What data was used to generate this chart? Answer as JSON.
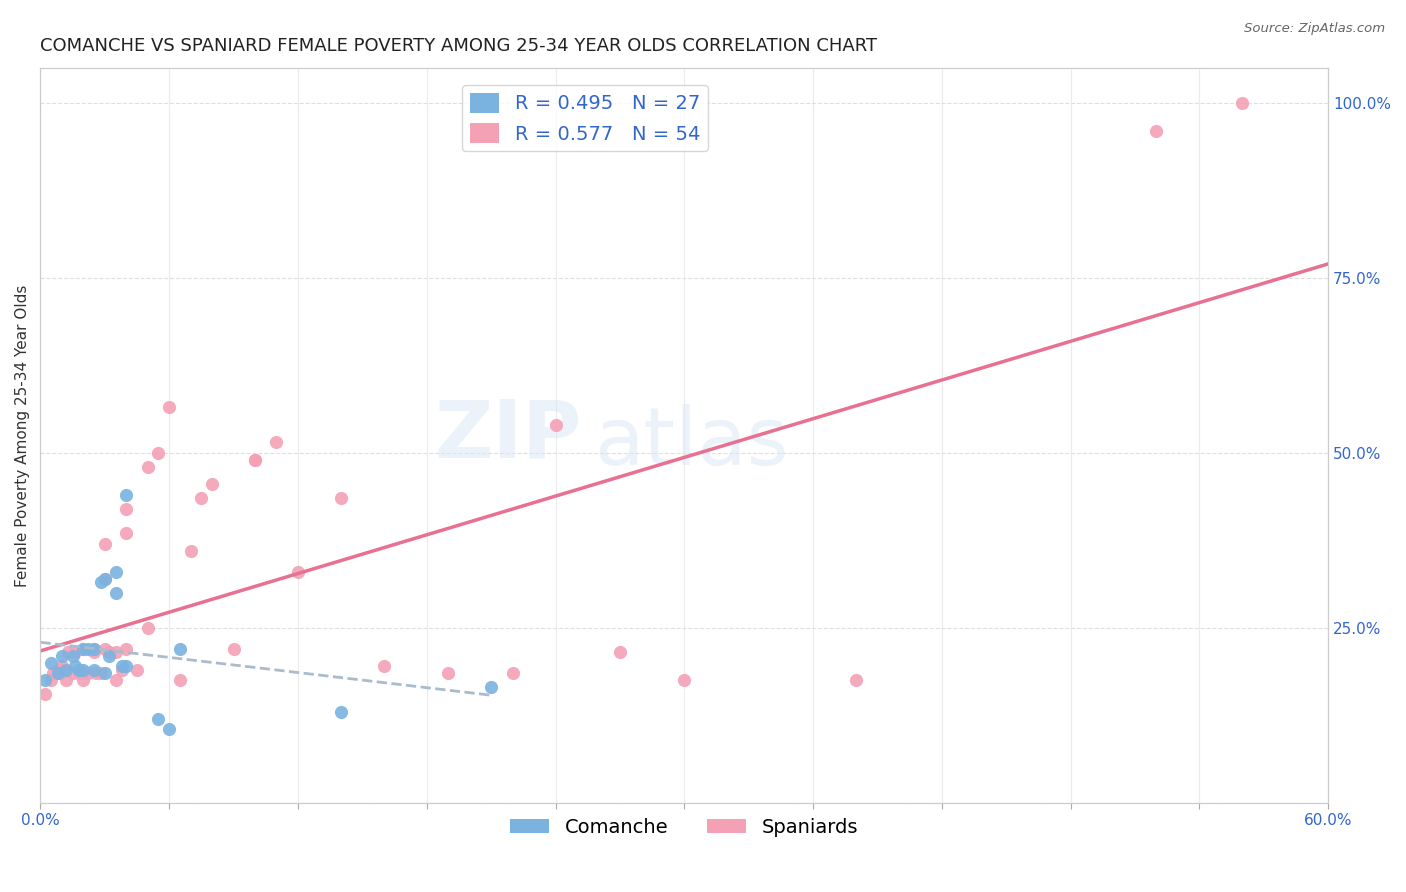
{
  "title": "COMANCHE VS SPANIARD FEMALE POVERTY AMONG 25-34 YEAR OLDS CORRELATION CHART",
  "source": "Source: ZipAtlas.com",
  "xlabel": "",
  "ylabel": "Female Poverty Among 25-34 Year Olds",
  "xlim": [
    0.0,
    0.6
  ],
  "ylim": [
    0.0,
    1.05
  ],
  "xticks": [
    0.0,
    0.06,
    0.12,
    0.18,
    0.24,
    0.3,
    0.36,
    0.42,
    0.48,
    0.54,
    0.6
  ],
  "yticks_right": [
    0.0,
    0.25,
    0.5,
    0.75,
    1.0
  ],
  "yticklabels_right": [
    "",
    "25.0%",
    "50.0%",
    "75.0%",
    "100.0%"
  ],
  "comanche_color": "#7ab3e0",
  "comanche_line_color": "#5b9bd5",
  "spaniard_color": "#f4a0b5",
  "spaniard_line_color": "#e87090",
  "comanche_R": 0.495,
  "comanche_N": 27,
  "spaniard_R": 0.577,
  "spaniard_N": 54,
  "watermark": "ZIPatlas",
  "background_color": "#ffffff",
  "comanche_x": [
    0.002,
    0.005,
    0.008,
    0.01,
    0.012,
    0.015,
    0.016,
    0.018,
    0.02,
    0.02,
    0.022,
    0.025,
    0.025,
    0.028,
    0.03,
    0.03,
    0.032,
    0.035,
    0.035,
    0.038,
    0.04,
    0.04,
    0.055,
    0.06,
    0.065,
    0.14,
    0.21
  ],
  "comanche_y": [
    0.175,
    0.2,
    0.185,
    0.21,
    0.19,
    0.21,
    0.195,
    0.19,
    0.22,
    0.19,
    0.22,
    0.19,
    0.22,
    0.315,
    0.185,
    0.32,
    0.21,
    0.3,
    0.33,
    0.195,
    0.44,
    0.195,
    0.12,
    0.105,
    0.22,
    0.13,
    0.165
  ],
  "spaniard_x": [
    0.002,
    0.005,
    0.006,
    0.008,
    0.009,
    0.01,
    0.01,
    0.012,
    0.013,
    0.015,
    0.016,
    0.018,
    0.02,
    0.02,
    0.02,
    0.022,
    0.025,
    0.025,
    0.026,
    0.028,
    0.03,
    0.03,
    0.03,
    0.032,
    0.035,
    0.035,
    0.038,
    0.04,
    0.04,
    0.04,
    0.045,
    0.05,
    0.05,
    0.055,
    0.06,
    0.065,
    0.07,
    0.075,
    0.08,
    0.09,
    0.1,
    0.1,
    0.11,
    0.12,
    0.14,
    0.16,
    0.19,
    0.22,
    0.24,
    0.27,
    0.3,
    0.38,
    0.52,
    0.56
  ],
  "spaniard_y": [
    0.155,
    0.175,
    0.185,
    0.19,
    0.185,
    0.19,
    0.195,
    0.175,
    0.215,
    0.185,
    0.215,
    0.185,
    0.185,
    0.22,
    0.175,
    0.185,
    0.22,
    0.215,
    0.185,
    0.185,
    0.22,
    0.37,
    0.32,
    0.215,
    0.215,
    0.175,
    0.19,
    0.385,
    0.42,
    0.22,
    0.19,
    0.25,
    0.48,
    0.5,
    0.565,
    0.175,
    0.36,
    0.435,
    0.455,
    0.22,
    0.49,
    0.49,
    0.515,
    0.33,
    0.435,
    0.195,
    0.185,
    0.185,
    0.54,
    0.215,
    0.175,
    0.175,
    0.96,
    1.0
  ],
  "legend_fontsize": 14,
  "title_fontsize": 13,
  "axis_label_fontsize": 11,
  "tick_fontsize": 11,
  "grid_color": "#d8d8d8",
  "spine_color": "#cccccc"
}
